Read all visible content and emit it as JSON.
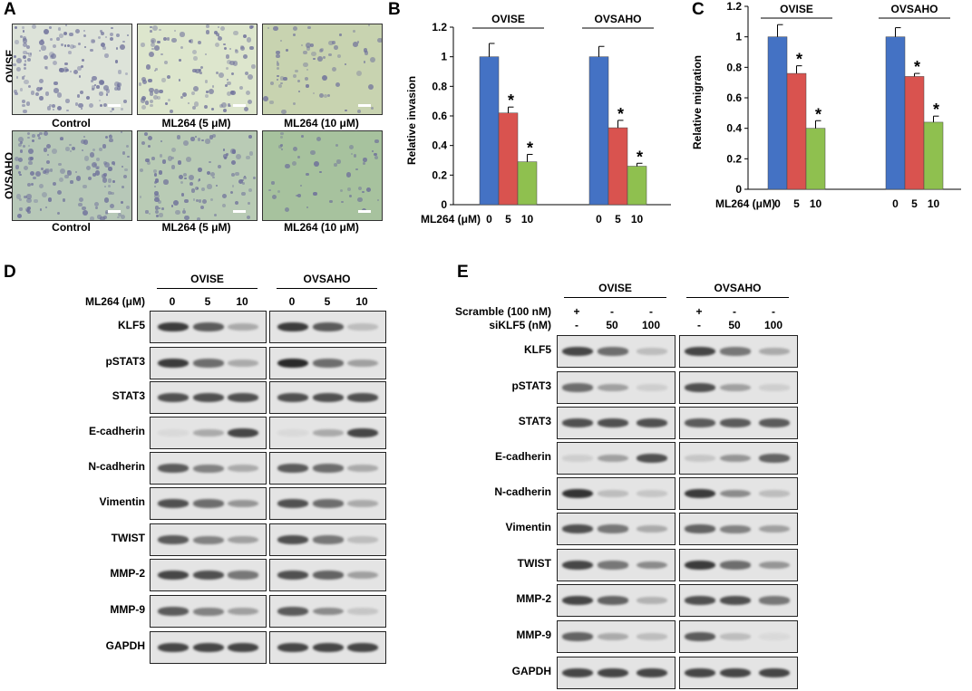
{
  "panelA": {
    "label": "A",
    "rows": [
      "OVISE",
      "OVSAHO"
    ],
    "captions": [
      "Control",
      "ML264 (5 μM)",
      "ML264 (10 μM)"
    ],
    "colors": {
      "ovise": [
        "#dde3d9",
        "#dde6cd",
        "#c8d3b0"
      ],
      "ovsaho": [
        "#b7c8b8",
        "#b9cbb5",
        "#a7c29e"
      ],
      "cell": "#6d6f9a"
    }
  },
  "chart_data": [
    {
      "type": "bar",
      "panel": "B",
      "ylabel": "Relative invasion",
      "xlabel": "ML264 (μM)",
      "ylim": [
        0,
        1.2
      ],
      "yticks": [
        "0",
        "0.2",
        "0.4",
        "0.6",
        "0.8",
        "1",
        "1.2"
      ],
      "groups": [
        {
          "name": "OVISE",
          "categories": [
            "0",
            "5",
            "10"
          ],
          "values": [
            1.0,
            0.62,
            0.29
          ],
          "errors": [
            0.09,
            0.04,
            0.05
          ],
          "sig": [
            "",
            "*",
            "*"
          ]
        },
        {
          "name": "OVSAHO",
          "categories": [
            "0",
            "5",
            "10"
          ],
          "values": [
            1.0,
            0.52,
            0.26
          ],
          "errors": [
            0.07,
            0.05,
            0.02
          ],
          "sig": [
            "",
            "*",
            "*"
          ]
        }
      ],
      "colors": [
        "#4472c4",
        "#d9534f",
        "#8fc04f"
      ]
    },
    {
      "type": "bar",
      "panel": "C",
      "ylabel": "Relative migration",
      "xlabel": "ML264 (μM)",
      "ylim": [
        0,
        1.2
      ],
      "yticks": [
        "0",
        "0.2",
        "0.4",
        "0.6",
        "0.8",
        "1",
        "1.2"
      ],
      "groups": [
        {
          "name": "OVISE",
          "categories": [
            "0",
            "5",
            "10"
          ],
          "values": [
            1.0,
            0.76,
            0.4
          ],
          "errors": [
            0.08,
            0.05,
            0.05
          ],
          "sig": [
            "",
            "*",
            "*"
          ]
        },
        {
          "name": "OVSAHO",
          "categories": [
            "0",
            "5",
            "10"
          ],
          "values": [
            1.0,
            0.74,
            0.44
          ],
          "errors": [
            0.06,
            0.02,
            0.04
          ],
          "sig": [
            "",
            "*",
            "*"
          ]
        }
      ],
      "colors": [
        "#4472c4",
        "#d9534f",
        "#8fc04f"
      ]
    }
  ],
  "panelD": {
    "label": "D",
    "groups": [
      "OVISE",
      "OVSAHO"
    ],
    "treatment_label": "ML264 (μM)",
    "lanes": [
      "0",
      "5",
      "10"
    ],
    "rows": [
      {
        "name": "KLF5",
        "g1": [
          0.85,
          0.7,
          0.3
        ],
        "g2": [
          0.85,
          0.7,
          0.2
        ]
      },
      {
        "name": "pSTAT3",
        "g1": [
          0.85,
          0.6,
          0.3
        ],
        "g2": [
          0.95,
          0.6,
          0.35
        ]
      },
      {
        "name": "STAT3",
        "g1": [
          0.75,
          0.75,
          0.75
        ],
        "g2": [
          0.75,
          0.75,
          0.75
        ]
      },
      {
        "name": "E-cadherin",
        "g1": [
          0.05,
          0.3,
          0.8
        ],
        "g2": [
          0.05,
          0.3,
          0.8
        ]
      },
      {
        "name": "N-cadherin",
        "g1": [
          0.7,
          0.5,
          0.3
        ],
        "g2": [
          0.7,
          0.6,
          0.3
        ]
      },
      {
        "name": "Vimentin",
        "g1": [
          0.75,
          0.6,
          0.4
        ],
        "g2": [
          0.75,
          0.6,
          0.3
        ]
      },
      {
        "name": "TWIST",
        "g1": [
          0.7,
          0.5,
          0.35
        ],
        "g2": [
          0.75,
          0.55,
          0.2
        ]
      },
      {
        "name": "MMP-2",
        "g1": [
          0.8,
          0.75,
          0.55
        ],
        "g2": [
          0.75,
          0.65,
          0.35
        ]
      },
      {
        "name": "MMP-9",
        "g1": [
          0.7,
          0.5,
          0.35
        ],
        "g2": [
          0.7,
          0.45,
          0.15
        ]
      },
      {
        "name": "GAPDH",
        "g1": [
          0.8,
          0.8,
          0.8
        ],
        "g2": [
          0.8,
          0.8,
          0.8
        ]
      }
    ]
  },
  "panelE": {
    "label": "E",
    "groups": [
      "OVISE",
      "OVSAHO"
    ],
    "scramble_label": "Scramble (100 nM)",
    "scramble_vals": [
      "+",
      "-",
      "-"
    ],
    "si_label": "siKLF5 (nM)",
    "si_vals": [
      "-",
      "50",
      "100"
    ],
    "rows": [
      {
        "name": "KLF5",
        "g1": [
          0.8,
          0.6,
          0.2
        ],
        "g2": [
          0.8,
          0.55,
          0.3
        ]
      },
      {
        "name": "pSTAT3",
        "g1": [
          0.6,
          0.35,
          0.1
        ],
        "g2": [
          0.75,
          0.35,
          0.1
        ]
      },
      {
        "name": "STAT3",
        "g1": [
          0.75,
          0.75,
          0.75
        ],
        "g2": [
          0.7,
          0.7,
          0.7
        ]
      },
      {
        "name": "E-cadherin",
        "g1": [
          0.1,
          0.35,
          0.75
        ],
        "g2": [
          0.15,
          0.4,
          0.65
        ]
      },
      {
        "name": "N-cadherin",
        "g1": [
          0.9,
          0.2,
          0.15
        ],
        "g2": [
          0.85,
          0.45,
          0.2
        ]
      },
      {
        "name": "Vimentin",
        "g1": [
          0.75,
          0.55,
          0.3
        ],
        "g2": [
          0.65,
          0.5,
          0.35
        ]
      },
      {
        "name": "TWIST",
        "g1": [
          0.8,
          0.55,
          0.45
        ],
        "g2": [
          0.85,
          0.6,
          0.4
        ]
      },
      {
        "name": "MMP-2",
        "g1": [
          0.8,
          0.65,
          0.25
        ],
        "g2": [
          0.75,
          0.75,
          0.55
        ]
      },
      {
        "name": "MMP-9",
        "g1": [
          0.65,
          0.3,
          0.2
        ],
        "g2": [
          0.7,
          0.2,
          0.05
        ]
      },
      {
        "name": "GAPDH",
        "g1": [
          0.8,
          0.8,
          0.8
        ],
        "g2": [
          0.8,
          0.8,
          0.8
        ]
      }
    ]
  }
}
